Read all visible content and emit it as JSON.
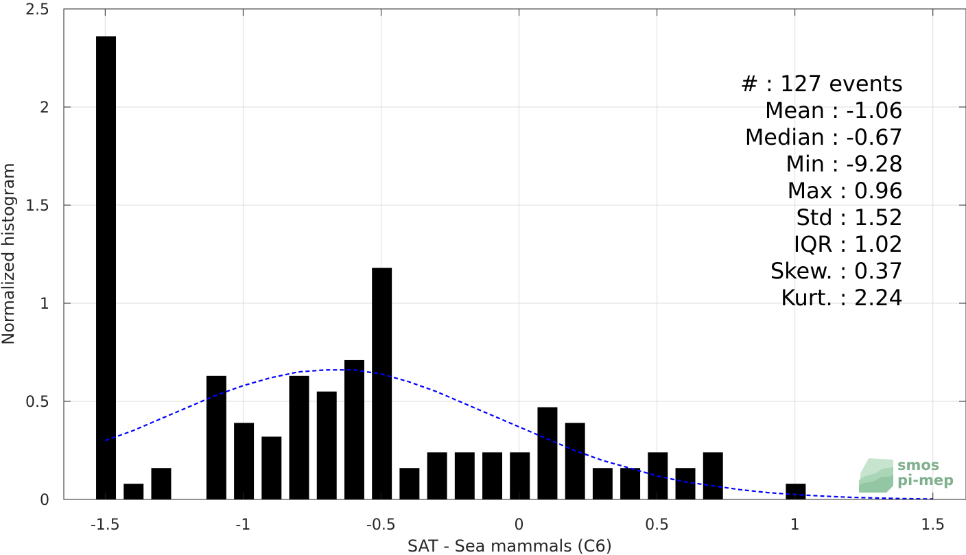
{
  "chart_data": {
    "type": "bar",
    "xlabel": "SAT - Sea mammals (C6)",
    "ylabel": "Normalized histogram",
    "xlim": [
      -1.65,
      1.62
    ],
    "ylim": [
      0,
      2.5
    ],
    "grid": true,
    "x_ticks": [
      -1.5,
      -1,
      -0.5,
      0,
      0.5,
      1,
      1.5
    ],
    "x_tick_labels": [
      "-1.5",
      "-1",
      "-0.5",
      "0",
      "0.5",
      "1",
      "1.5"
    ],
    "y_ticks": [
      0,
      0.5,
      1,
      1.5,
      2,
      2.5
    ],
    "y_tick_labels": [
      "0",
      "0.5",
      "1",
      "1.5",
      "2",
      "2.5"
    ],
    "bar_width": 0.072,
    "bar_color": "#000000",
    "bars": [
      {
        "x": -1.497,
        "y": 2.36
      },
      {
        "x": -1.397,
        "y": 0.08
      },
      {
        "x": -1.297,
        "y": 0.16
      },
      {
        "x": -1.097,
        "y": 0.63
      },
      {
        "x": -0.997,
        "y": 0.39
      },
      {
        "x": -0.897,
        "y": 0.32
      },
      {
        "x": -0.797,
        "y": 0.63
      },
      {
        "x": -0.697,
        "y": 0.55
      },
      {
        "x": -0.597,
        "y": 0.71
      },
      {
        "x": -0.497,
        "y": 1.18
      },
      {
        "x": -0.397,
        "y": 0.16
      },
      {
        "x": -0.297,
        "y": 0.24
      },
      {
        "x": -0.197,
        "y": 0.24
      },
      {
        "x": -0.097,
        "y": 0.24
      },
      {
        "x": 0.003,
        "y": 0.24
      },
      {
        "x": 0.103,
        "y": 0.47
      },
      {
        "x": 0.203,
        "y": 0.39
      },
      {
        "x": 0.303,
        "y": 0.16
      },
      {
        "x": 0.403,
        "y": 0.16
      },
      {
        "x": 0.503,
        "y": 0.24
      },
      {
        "x": 0.603,
        "y": 0.16
      },
      {
        "x": 0.703,
        "y": 0.24
      },
      {
        "x": 1.003,
        "y": 0.08
      }
    ],
    "fit_curve": {
      "style": "dashed",
      "color": "#0000ff",
      "x": [
        -1.5,
        -1.4,
        -1.3,
        -1.2,
        -1.1,
        -1.0,
        -0.9,
        -0.8,
        -0.7,
        -0.6,
        -0.5,
        -0.4,
        -0.3,
        -0.2,
        -0.1,
        0.0,
        0.1,
        0.2,
        0.3,
        0.4,
        0.5,
        0.6,
        0.7,
        0.8,
        0.9,
        1.0,
        1.1,
        1.2,
        1.3,
        1.4,
        1.5
      ],
      "y": [
        0.3,
        0.35,
        0.41,
        0.47,
        0.53,
        0.58,
        0.62,
        0.65,
        0.66,
        0.66,
        0.64,
        0.6,
        0.55,
        0.49,
        0.43,
        0.37,
        0.31,
        0.25,
        0.2,
        0.16,
        0.12,
        0.09,
        0.07,
        0.05,
        0.035,
        0.025,
        0.017,
        0.011,
        0.007,
        0.004,
        0.002
      ]
    },
    "stats": [
      {
        "label": "#  : 127 events"
      },
      {
        "label": "Mean : -1.06"
      },
      {
        "label": "Median : -0.67"
      },
      {
        "label": "Min : -9.28"
      },
      {
        "label": "Max : 0.96"
      },
      {
        "label": "Std : 1.52"
      },
      {
        "label": "IQR : 1.02"
      },
      {
        "label": "Skew. : 0.37"
      },
      {
        "label": "Kurt. : 2.24"
      }
    ]
  },
  "logo": {
    "line1": "smos",
    "line2": "pi-mep"
  }
}
